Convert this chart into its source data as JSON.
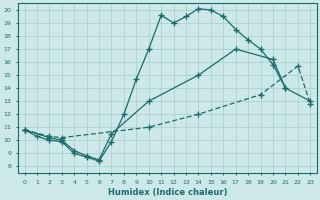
{
  "background_color": "#cce8e8",
  "line_color": "#1a6b6b",
  "grid_color": "#aacccc",
  "xlabel": "Humidex (Indice chaleur)",
  "xlim": [
    -0.5,
    23.5
  ],
  "ylim": [
    7.5,
    20.5
  ],
  "xticks": [
    0,
    1,
    2,
    3,
    4,
    5,
    6,
    7,
    8,
    9,
    10,
    11,
    12,
    13,
    14,
    15,
    16,
    17,
    18,
    19,
    20,
    21,
    22,
    23
  ],
  "yticks": [
    8,
    9,
    10,
    11,
    12,
    13,
    14,
    15,
    16,
    17,
    18,
    19,
    20
  ],
  "line1_x": [
    0,
    1,
    2,
    3,
    4,
    5,
    6,
    7,
    8,
    9,
    10,
    11,
    12,
    13,
    14,
    15,
    16,
    17,
    18,
    19,
    20,
    21
  ],
  "line1_y": [
    10.8,
    10.3,
    10.0,
    9.9,
    9.0,
    8.7,
    8.4,
    9.9,
    12.0,
    14.7,
    17.0,
    19.6,
    19.0,
    19.5,
    20.1,
    20.0,
    19.5,
    18.5,
    17.7,
    17.0,
    15.8,
    14.0
  ],
  "line2_x": [
    0,
    2,
    3,
    4,
    5,
    6,
    7,
    10,
    14,
    17,
    20,
    21,
    23
  ],
  "line2_y": [
    10.8,
    10.2,
    10.0,
    9.2,
    8.8,
    8.5,
    10.5,
    13.0,
    15.0,
    17.0,
    16.2,
    14.0,
    13.0
  ],
  "line3_x": [
    0,
    2,
    3,
    10,
    14,
    19,
    22,
    23
  ],
  "line3_y": [
    10.8,
    10.3,
    10.2,
    11.0,
    12.0,
    13.5,
    15.7,
    12.8
  ]
}
